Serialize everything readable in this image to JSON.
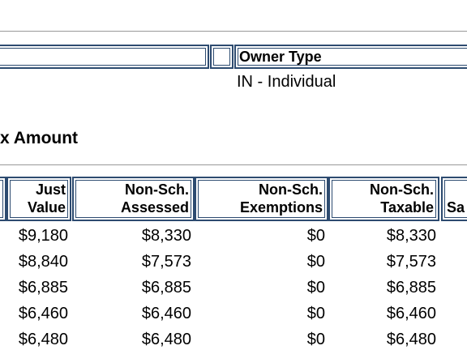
{
  "owner": {
    "label": "Owner Type",
    "value": "IN - Individual"
  },
  "section_title": "x Amount",
  "table": {
    "headers": [
      [
        "Just",
        "Value"
      ],
      [
        "Non-Sch.",
        "Assessed"
      ],
      [
        "Non-Sch.",
        "Exemptions"
      ],
      [
        "Non-Sch.",
        "Taxable"
      ],
      [
        "Sa"
      ]
    ],
    "rows": [
      [
        "$9,180",
        "$8,330",
        "$0",
        "$8,330"
      ],
      [
        "$8,840",
        "$7,573",
        "$0",
        "$7,573"
      ],
      [
        "$6,885",
        "$6,885",
        "$0",
        "$6,885"
      ],
      [
        "$6,460",
        "$6,460",
        "$0",
        "$6,460"
      ],
      [
        "$6,480",
        "$6,480",
        "$0",
        "$6,480"
      ]
    ]
  }
}
